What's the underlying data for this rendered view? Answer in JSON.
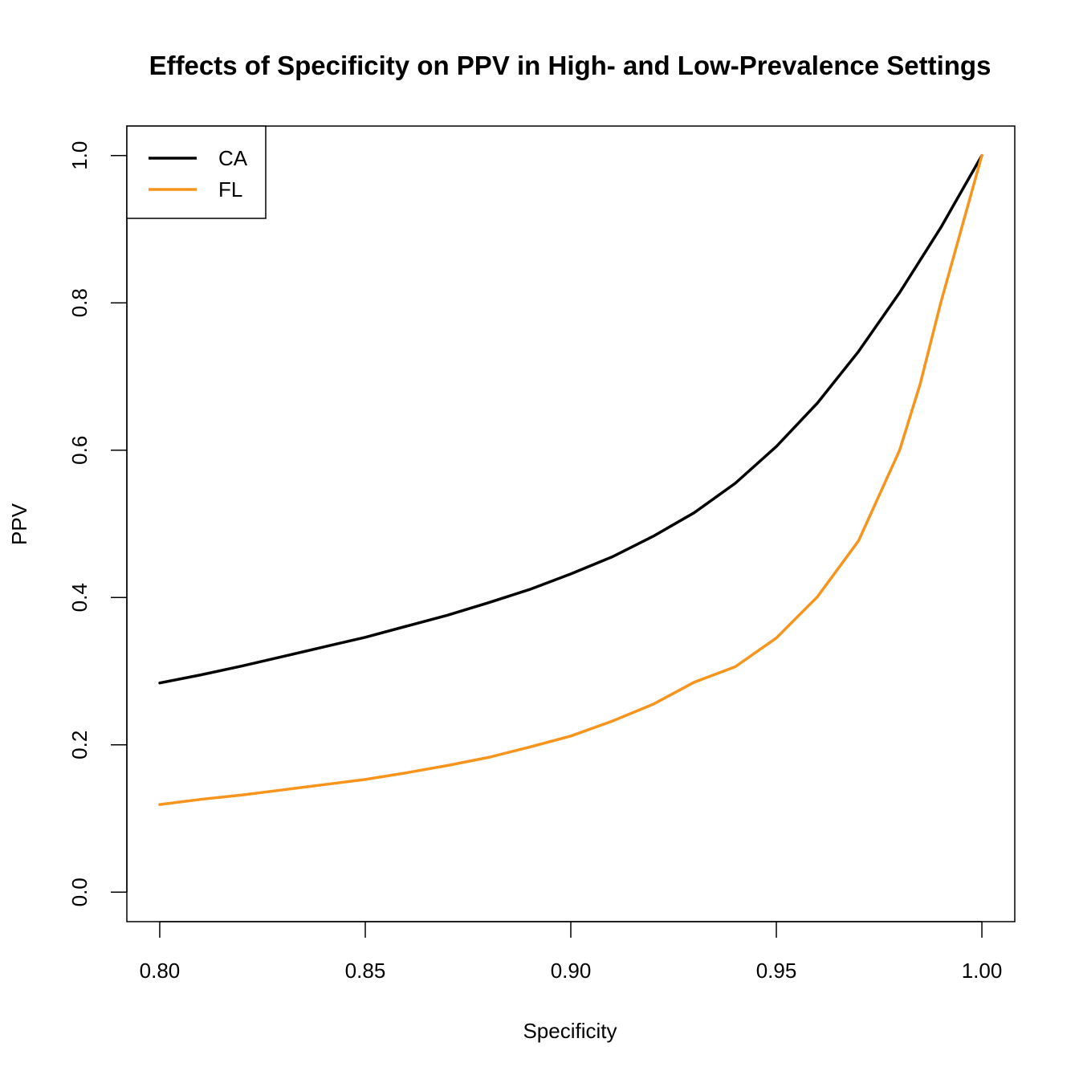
{
  "chart_data": {
    "type": "line",
    "title": "Effects of Specificity on PPV in High- and Low-Prevalence Settings",
    "xlabel": "Specificity",
    "ylabel": "PPV",
    "xlim": [
      0.792,
      1.008
    ],
    "ylim": [
      -0.04,
      1.04
    ],
    "x_ticks": [
      0.8,
      0.85,
      0.9,
      0.95,
      1.0
    ],
    "x_tick_labels": [
      "0.80",
      "0.85",
      "0.90",
      "0.95",
      "1.00"
    ],
    "y_ticks": [
      0.0,
      0.2,
      0.4,
      0.6,
      0.8,
      1.0
    ],
    "y_tick_labels": [
      "0.0",
      "0.2",
      "0.4",
      "0.6",
      "0.8",
      "1.0"
    ],
    "grid": false,
    "legend_position": "top-left",
    "series": [
      {
        "name": "CA",
        "color": "#000000",
        "x": [
          0.8,
          0.81,
          0.82,
          0.83,
          0.84,
          0.85,
          0.86,
          0.87,
          0.88,
          0.89,
          0.9,
          0.91,
          0.92,
          0.93,
          0.94,
          0.95,
          0.96,
          0.97,
          0.98,
          0.99,
          1.0
        ],
        "y": [
          0.284,
          0.295,
          0.307,
          0.32,
          0.333,
          0.346,
          0.361,
          0.376,
          0.393,
          0.411,
          0.432,
          0.455,
          0.483,
          0.515,
          0.555,
          0.605,
          0.664,
          0.734,
          0.814,
          0.902,
          1.0
        ]
      },
      {
        "name": "FL",
        "color": "#f7941d",
        "x": [
          0.8,
          0.81,
          0.82,
          0.83,
          0.84,
          0.85,
          0.86,
          0.87,
          0.88,
          0.89,
          0.9,
          0.91,
          0.92,
          0.93,
          0.94,
          0.95,
          0.96,
          0.97,
          0.98,
          0.985,
          0.99,
          0.995,
          1.0
        ],
        "y": [
          0.119,
          0.126,
          0.132,
          0.139,
          0.146,
          0.153,
          0.162,
          0.172,
          0.183,
          0.197,
          0.212,
          0.232,
          0.255,
          0.285,
          0.306,
          0.345,
          0.401,
          0.477,
          0.6,
          0.69,
          0.8,
          0.9,
          1.0
        ]
      }
    ]
  }
}
